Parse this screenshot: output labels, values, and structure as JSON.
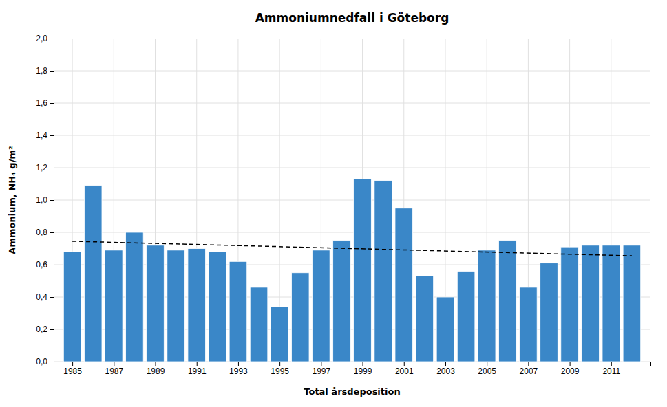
{
  "chart_data": {
    "type": "bar",
    "title": "Ammoniumnedfall i Göteborg",
    "xlabel": "Total årsdeposition",
    "ylabel": "Ammonium, NH₄ g/m²",
    "x": [
      1985,
      1986,
      1987,
      1988,
      1989,
      1990,
      1991,
      1992,
      1993,
      1994,
      1995,
      1996,
      1997,
      1998,
      1999,
      2000,
      2001,
      2002,
      2003,
      2004,
      2005,
      2006,
      2007,
      2008,
      2009,
      2010,
      2011,
      2012
    ],
    "xlim": [
      1984.1,
      2012.9
    ],
    "xticks": [
      1985,
      1987,
      1989,
      1991,
      1993,
      1995,
      1997,
      1999,
      2001,
      2003,
      2005,
      2007,
      2009,
      2011
    ],
    "ylim": [
      0,
      2.0
    ],
    "yticks": [
      {
        "value": 0.0,
        "label": "0,0"
      },
      {
        "value": 0.2,
        "label": "0,2"
      },
      {
        "value": 0.4,
        "label": "0,4"
      },
      {
        "value": 0.6,
        "label": "0,6"
      },
      {
        "value": 0.8,
        "label": "0,8"
      },
      {
        "value": 1.0,
        "label": "1,0"
      },
      {
        "value": 1.2,
        "label": "1,2"
      },
      {
        "value": 1.4,
        "label": "1,4"
      },
      {
        "value": 1.6,
        "label": "1,6"
      },
      {
        "value": 1.8,
        "label": "1,8"
      },
      {
        "value": 2.0,
        "label": "2,0"
      }
    ],
    "grid": true,
    "series": [
      {
        "type": "bar",
        "color": "#3a87c8",
        "values": [
          0.68,
          1.09,
          0.69,
          0.8,
          0.72,
          0.69,
          0.7,
          0.68,
          0.62,
          0.46,
          0.34,
          0.55,
          0.69,
          0.75,
          1.13,
          1.12,
          0.95,
          0.53,
          0.4,
          0.56,
          0.69,
          0.75,
          0.46,
          0.61,
          0.71,
          0.72,
          0.72,
          0.72
        ]
      },
      {
        "type": "line",
        "color": "#000000",
        "line_style": "dashed",
        "x": [
          1985,
          2012
        ],
        "values": [
          0.745,
          0.655
        ]
      }
    ]
  }
}
